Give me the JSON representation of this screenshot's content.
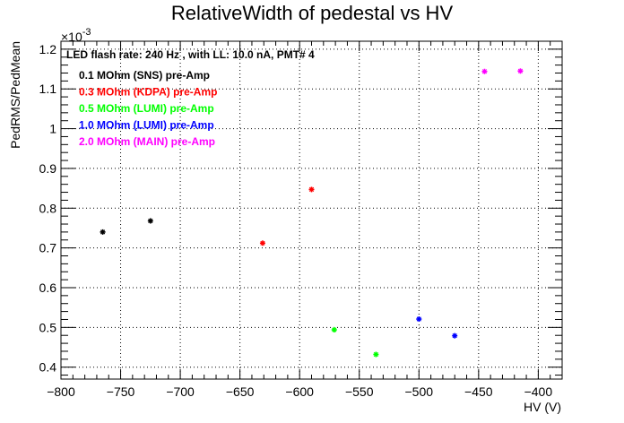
{
  "chart_data": {
    "type": "scatter",
    "title": "RelativeWidth of pedestal vs HV",
    "xlabel": "HV (V)",
    "ylabel": "PedRMS/PedMean",
    "y_multiplier": "×10",
    "y_multiplier_exp": "-3",
    "xlim": [
      -800,
      -380
    ],
    "ylim": [
      0.37,
      1.22
    ],
    "grid": true,
    "x_ticks": [
      -800,
      -750,
      -700,
      -650,
      -600,
      -550,
      -500,
      -450,
      -400
    ],
    "x_tick_labels": [
      "−800",
      "−750",
      "−700",
      "−650",
      "−600",
      "−550",
      "−500",
      "−450",
      "−400"
    ],
    "y_ticks": [
      0.4,
      0.5,
      0.6,
      0.7,
      0.8,
      0.9,
      1.0,
      1.1,
      1.2
    ],
    "y_tick_labels": [
      "0.4",
      "0.5",
      "0.6",
      "0.7",
      "0.8",
      "0.9",
      "1",
      "1.1",
      "1.2"
    ],
    "legend_header": "LED flash rate: 240 Hz , with LL: 10.0 nA, PMT# 4",
    "legend_placement": "top-left",
    "series": [
      {
        "name": "0.1 MOhm (SNS) pre-Amp",
        "color": "#000000",
        "x": [
          -765,
          -725
        ],
        "y": [
          0.74,
          0.768
        ]
      },
      {
        "name": "0.3 MOhm (KDPA) pre-Amp",
        "color": "#ff0000",
        "x": [
          -631,
          -590
        ],
        "y": [
          0.712,
          0.847
        ]
      },
      {
        "name": "0.5 MOhm (LUMI) pre-Amp",
        "color": "#00ff00",
        "x": [
          -571,
          -536
        ],
        "y": [
          0.494,
          0.432
        ]
      },
      {
        "name": "1.0 MOhm (LUMI) pre-Amp",
        "color": "#0000ff",
        "x": [
          -500,
          -470
        ],
        "y": [
          0.521,
          0.479
        ]
      },
      {
        "name": "2.0 MOhm (MAIN) pre-Amp",
        "color": "#ff00ff",
        "x": [
          -445,
          -415
        ],
        "y": [
          1.144,
          1.145
        ]
      }
    ]
  }
}
